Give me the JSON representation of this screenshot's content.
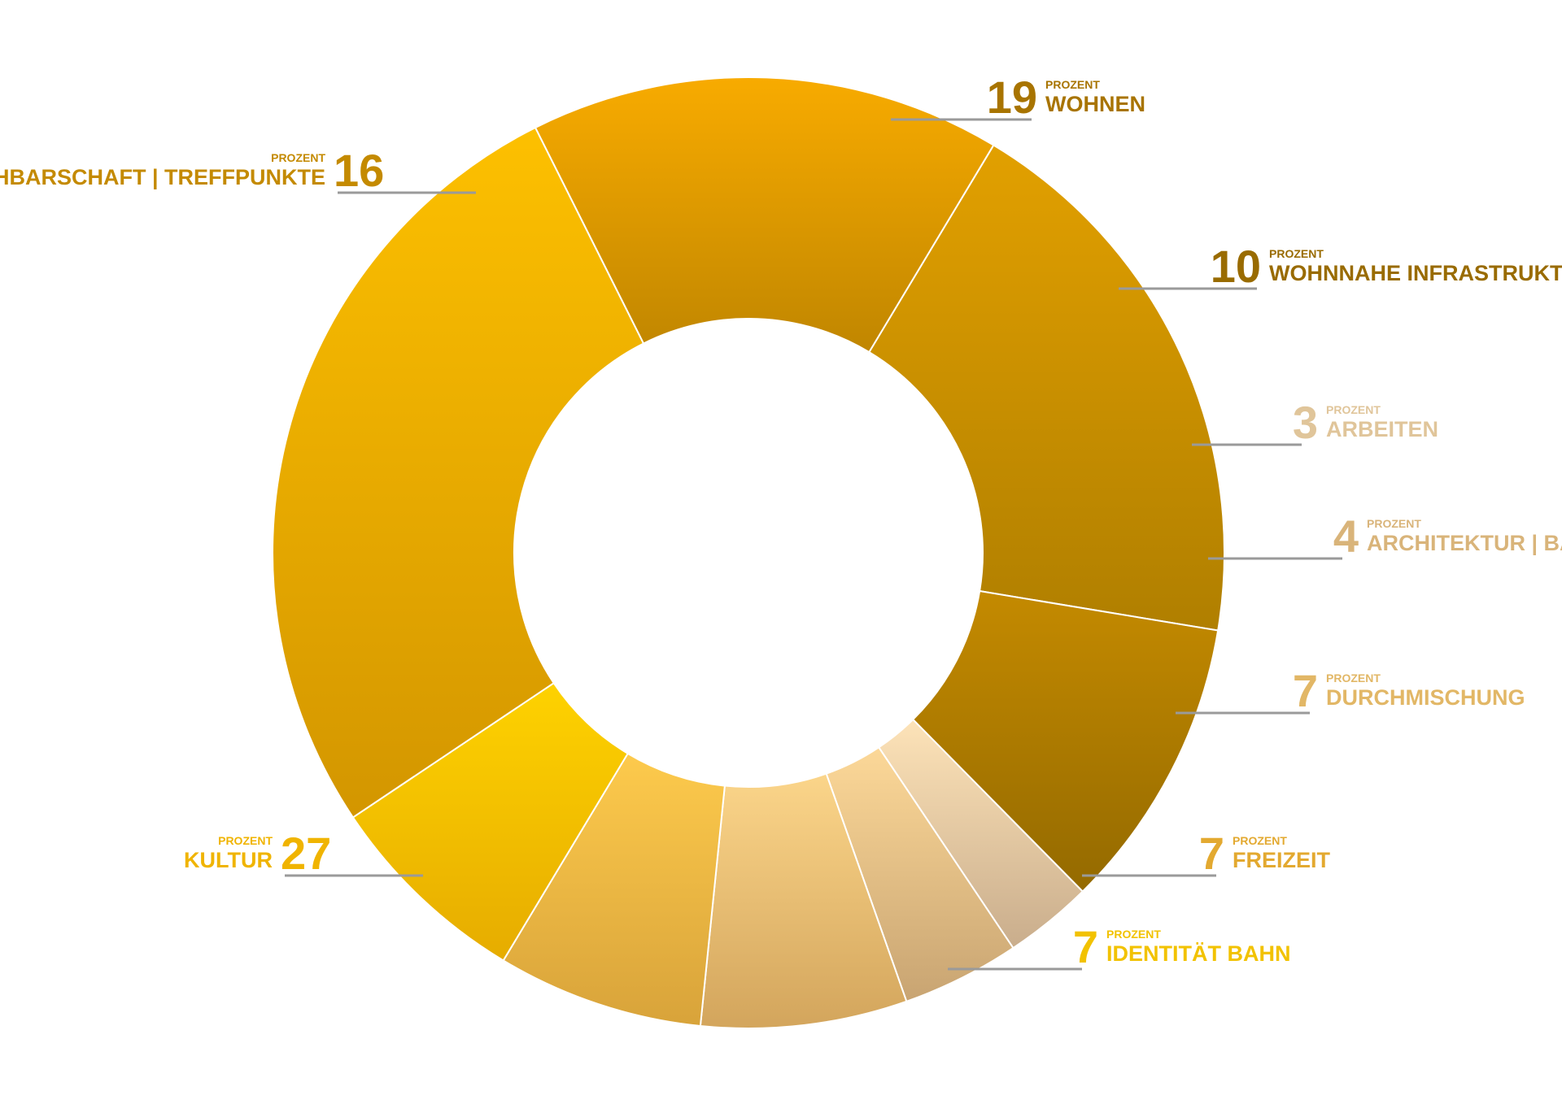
{
  "chart_data": {
    "type": "pie",
    "unit_label": "PROZENT",
    "title": "",
    "slices": [
      {
        "label": "WOHNEN",
        "value": 19,
        "color_light": "#e2a000",
        "color_dark": "#b07f00",
        "text_color": "#a87400"
      },
      {
        "label": "WOHNNAHE INFRASTRUKTUR",
        "value": 10,
        "color_light": "#c48a00",
        "color_dark": "#946a00",
        "text_color": "#996b00"
      },
      {
        "label": "ARBEITEN",
        "value": 3,
        "color_light": "#fde3b8",
        "color_dark": "#c9ad8c",
        "text_color": "#e0c59a"
      },
      {
        "label": "ARCHITEKTUR | BAUEN",
        "value": 4,
        "color_light": "#fcd898",
        "color_dark": "#c8a472",
        "text_color": "#d9b47a"
      },
      {
        "label": "DURCHMISCHUNG",
        "value": 7,
        "color_light": "#fbd58a",
        "color_dark": "#d3a55c",
        "text_color": "#e2b766"
      },
      {
        "label": "FREIZEIT",
        "value": 7,
        "color_light": "#fdca4c",
        "color_dark": "#d8a33a",
        "text_color": "#e3a930"
      },
      {
        "label": "IDENTITÄT BAHN",
        "value": 7,
        "color_light": "#fed200",
        "color_dark": "#e6ac00",
        "text_color": "#f2c200"
      },
      {
        "label": "KULTUR",
        "value": 27,
        "color_light": "#fdc000",
        "color_dark": "#d39600",
        "text_color": "#f0b400"
      },
      {
        "label": "NACHBARSCHAFT | TREFFPUNKTE",
        "value": 16,
        "color_light": "#f8ab00",
        "color_dark": "#c08600",
        "text_color": "#c48a00"
      }
    ],
    "legend": "none"
  }
}
